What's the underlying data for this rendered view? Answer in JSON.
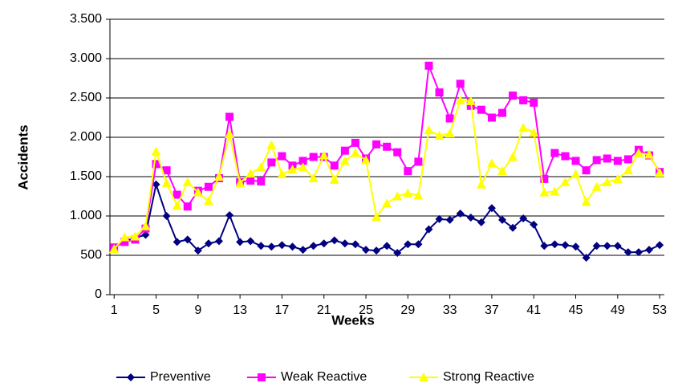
{
  "chart_data": {
    "type": "line",
    "x_label": "Weeks",
    "y_label": "Accidents",
    "x": [
      1,
      2,
      3,
      4,
      5,
      6,
      7,
      8,
      9,
      10,
      11,
      12,
      13,
      14,
      15,
      16,
      17,
      18,
      19,
      20,
      21,
      22,
      23,
      24,
      25,
      26,
      27,
      28,
      29,
      30,
      31,
      32,
      33,
      34,
      35,
      36,
      37,
      38,
      39,
      40,
      41,
      42,
      43,
      44,
      45,
      46,
      47,
      48,
      49,
      50,
      51,
      52,
      53
    ],
    "xlim": [
      0.6,
      53.45
    ],
    "xticks": [
      1,
      5,
      9,
      13,
      17,
      21,
      25,
      29,
      33,
      37,
      41,
      45,
      49,
      53
    ],
    "ylim": [
      0,
      3500
    ],
    "yticks": [
      0,
      500,
      {
        "value": 1000,
        "label": "1.000"
      },
      {
        "value": 1500,
        "label": "1.500"
      },
      {
        "value": 2000,
        "label": "2.000"
      },
      {
        "value": 2500,
        "label": "2.500"
      },
      {
        "value": 3000,
        "label": "3.000"
      },
      {
        "value": 3500,
        "label": "3.500"
      }
    ],
    "grid": true,
    "legend": "bottom",
    "series": [
      {
        "name": "Preventive",
        "color": "#000080",
        "marker": "diamond",
        "values": [
          600,
          680,
          720,
          760,
          1400,
          1000,
          670,
          700,
          560,
          650,
          680,
          1010,
          670,
          680,
          620,
          610,
          630,
          610,
          570,
          620,
          650,
          690,
          650,
          640,
          570,
          560,
          620,
          530,
          640,
          640,
          830,
          960,
          950,
          1030,
          980,
          920,
          1100,
          950,
          850,
          970,
          890,
          620,
          640,
          630,
          610,
          470,
          620,
          620,
          620,
          540,
          540,
          570,
          630
        ]
      },
      {
        "name": "Weak Reactive",
        "color": "#ff00ff",
        "marker": "square",
        "values": [
          600,
          670,
          700,
          840,
          1660,
          1580,
          1270,
          1120,
          1320,
          1370,
          1480,
          2260,
          1430,
          1450,
          1440,
          1680,
          1760,
          1640,
          1700,
          1750,
          1750,
          1640,
          1830,
          1930,
          1730,
          1910,
          1880,
          1810,
          1570,
          1690,
          2910,
          2570,
          2240,
          2680,
          2400,
          2350,
          2250,
          2310,
          2530,
          2470,
          2440,
          1470,
          1800,
          1760,
          1700,
          1580,
          1710,
          1730,
          1700,
          1720,
          1840,
          1770,
          1560
        ]
      },
      {
        "name": "Strong Reactive",
        "color": "#ffff00",
        "marker": "triangle",
        "values": [
          580,
          730,
          740,
          870,
          1820,
          1420,
          1130,
          1430,
          1300,
          1190,
          1500,
          2040,
          1420,
          1540,
          1620,
          1900,
          1530,
          1590,
          1620,
          1480,
          1770,
          1460,
          1700,
          1800,
          1710,
          990,
          1160,
          1250,
          1290,
          1260,
          2090,
          2020,
          2050,
          2470,
          2460,
          1400,
          1670,
          1570,
          1750,
          2120,
          2060,
          1300,
          1310,
          1430,
          1530,
          1180,
          1370,
          1430,
          1470,
          1580,
          1800,
          1780,
          1550
        ]
      }
    ]
  }
}
